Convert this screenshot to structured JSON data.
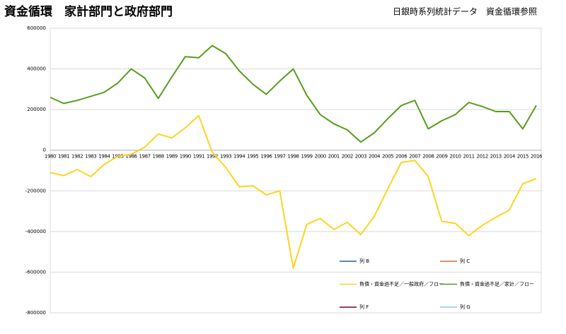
{
  "chart_data": {
    "type": "line",
    "title": "資金循環　家計部門と政府部門",
    "subtitle": "日銀時系列統計データ　資金循環参照",
    "categories": [
      "1980",
      "1981",
      "1982",
      "1983",
      "1984",
      "1985",
      "1986",
      "1987",
      "1988",
      "1989",
      "1990",
      "1991",
      "1992",
      "1993",
      "1994",
      "1995",
      "1996",
      "1997",
      "1998",
      "1999",
      "2000",
      "2001",
      "2002",
      "2003",
      "2004",
      "2005",
      "2006",
      "2007",
      "2008",
      "2009",
      "2010",
      "2011",
      "2012",
      "2013",
      "2014",
      "2015",
      "2016"
    ],
    "series": [
      {
        "name": "列 B",
        "color": "#2a5caa",
        "values": [
          null,
          null,
          null,
          null,
          null,
          null,
          null,
          null,
          null,
          null,
          null,
          null,
          null,
          null,
          null,
          null,
          null,
          null,
          null,
          null,
          null,
          null,
          null,
          null,
          null,
          null,
          null,
          null,
          null,
          null,
          null,
          null,
          null,
          null,
          null,
          null,
          null
        ]
      },
      {
        "name": "列 C",
        "color": "#e8643a",
        "values": [
          null,
          null,
          null,
          null,
          null,
          null,
          null,
          null,
          null,
          null,
          null,
          null,
          null,
          null,
          null,
          null,
          null,
          null,
          null,
          null,
          null,
          null,
          null,
          null,
          null,
          null,
          null,
          null,
          null,
          null,
          null,
          null,
          null,
          null,
          null,
          null,
          null
        ]
      },
      {
        "name": "負債・資金過不足／一般政府／フロー",
        "color": "#ffd320",
        "values": [
          -110000,
          -125000,
          -95000,
          -130000,
          -70000,
          -30000,
          -20000,
          15000,
          80000,
          60000,
          110000,
          170000,
          -10000,
          -85000,
          -180000,
          -175000,
          -220000,
          -200000,
          -580000,
          -365000,
          -335000,
          -390000,
          -355000,
          -415000,
          -325000,
          -190000,
          -60000,
          -50000,
          -130000,
          -350000,
          -360000,
          -420000,
          -370000,
          -330000,
          -295000,
          -165000,
          -140000
        ]
      },
      {
        "name": "負債・資金過不足／家計／フロー",
        "color": "#579d1c",
        "values": [
          260000,
          230000,
          245000,
          265000,
          285000,
          330000,
          400000,
          355000,
          255000,
          360000,
          460000,
          455000,
          515000,
          475000,
          390000,
          325000,
          275000,
          340000,
          400000,
          270000,
          175000,
          130000,
          100000,
          40000,
          85000,
          155000,
          220000,
          245000,
          105000,
          145000,
          175000,
          235000,
          215000,
          190000,
          190000,
          105000,
          220000
        ]
      },
      {
        "name": "列 F",
        "color": "#7e0021",
        "values": [
          null,
          null,
          null,
          null,
          null,
          null,
          null,
          null,
          null,
          null,
          null,
          null,
          null,
          null,
          null,
          null,
          null,
          null,
          null,
          null,
          null,
          null,
          null,
          null,
          null,
          null,
          null,
          null,
          null,
          null,
          null,
          null,
          null,
          null,
          null,
          null,
          null
        ]
      },
      {
        "name": "列 G",
        "color": "#83caff",
        "values": [
          null,
          null,
          null,
          null,
          null,
          null,
          null,
          null,
          null,
          null,
          null,
          null,
          null,
          null,
          null,
          null,
          null,
          null,
          null,
          null,
          null,
          null,
          null,
          null,
          null,
          null,
          null,
          null,
          null,
          null,
          null,
          null,
          null,
          null,
          null,
          null,
          null
        ]
      }
    ],
    "ylim": [
      -800000,
      600000
    ],
    "yticks": [
      -800000,
      -600000,
      -400000,
      -200000,
      0,
      200000,
      400000,
      600000
    ],
    "grid": true
  }
}
